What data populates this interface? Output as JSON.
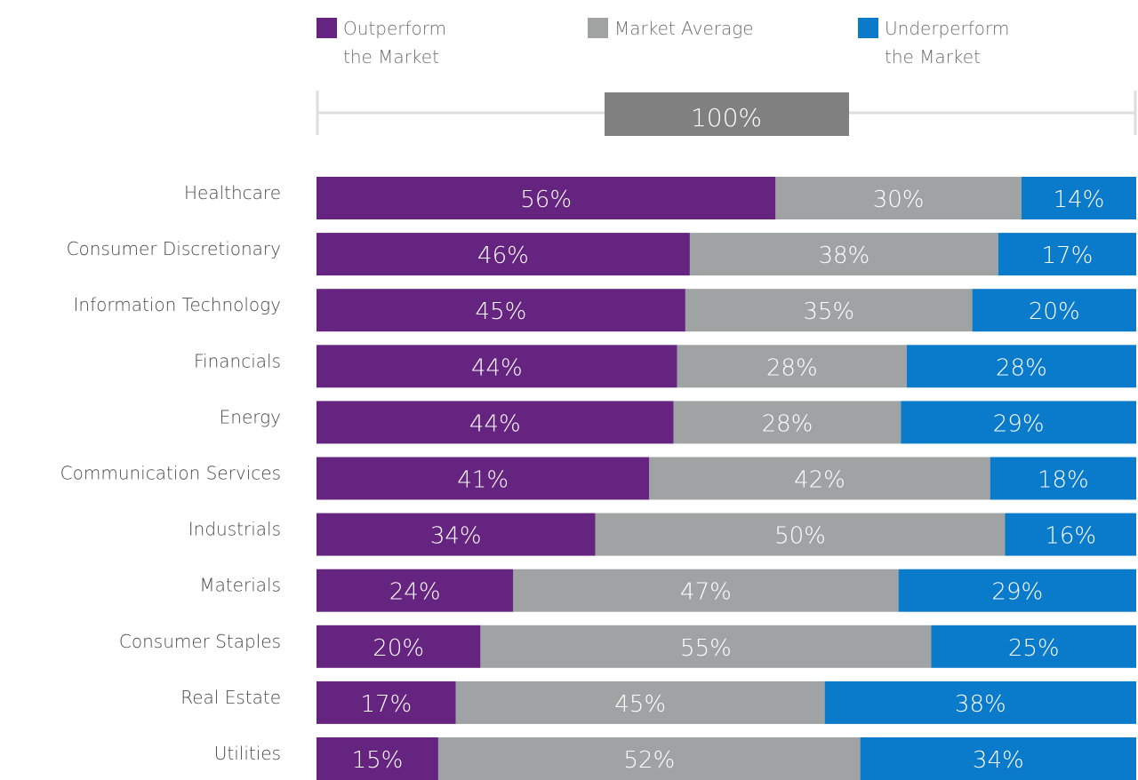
{
  "colors": {
    "outperform": "#652480",
    "market_average": "#a0a3a3",
    "underperform": "#0a7acb",
    "scale_box": "#808080",
    "scale_line": "#dddddd"
  },
  "chart_data": {
    "type": "bar",
    "orientation": "horizontal",
    "stacked": true,
    "scale_label": "100%",
    "legend": [
      {
        "key": "outperform",
        "lines": [
          "Outperform",
          "the Market"
        ]
      },
      {
        "key": "market_average",
        "lines": [
          "Market Average"
        ]
      },
      {
        "key": "underperform",
        "lines": [
          "Underperform",
          "the Market"
        ]
      }
    ],
    "categories": [
      "Healthcare",
      "Consumer Discretionary",
      "Information Technology",
      "Financials",
      "Energy",
      "Communication Services",
      "Industrials",
      "Materials",
      "Consumer Staples",
      "Real Estate",
      "Utilities"
    ],
    "series": [
      {
        "key": "outperform",
        "name": "Outperform the Market",
        "values": [
          56,
          46,
          45,
          44,
          44,
          41,
          34,
          24,
          20,
          17,
          15
        ]
      },
      {
        "key": "market_average",
        "name": "Market Average",
        "values": [
          30,
          38,
          35,
          28,
          28,
          42,
          50,
          47,
          55,
          45,
          52
        ]
      },
      {
        "key": "underperform",
        "name": "Underperform the Market",
        "values": [
          14,
          17,
          20,
          28,
          29,
          18,
          16,
          29,
          25,
          38,
          34
        ]
      }
    ],
    "value_suffix": "%",
    "xlim": [
      0,
      100
    ]
  }
}
